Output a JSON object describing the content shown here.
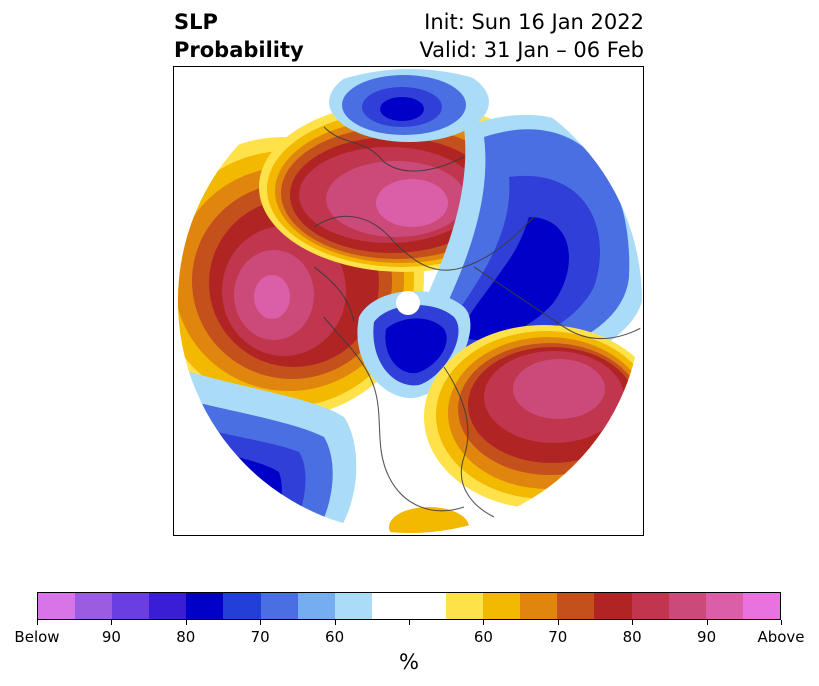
{
  "title": {
    "left_line1": "SLP",
    "left_line2": "Probability",
    "right_line1": "Init: Sun 16 Jan 2022",
    "right_line2": "Valid: 31 Jan – 06 Feb"
  },
  "map": {
    "projection": "north polar stereographic",
    "field": "SLP probability",
    "colors": {
      "below_strong": "#2f3fd8",
      "below_deep": "#0000c8",
      "below_mid": "#4a6fe3",
      "below_light": "#74aef0",
      "below_pale": "#aadcf8",
      "neutral": "#ffffff",
      "above_pale": "#ffe24a",
      "above_light": "#f3b800",
      "above_mid": "#e0860f",
      "above_orange": "#c4501c",
      "above_red": "#b12424",
      "above_crimson": "#c0364e",
      "above_rose": "#cc4a7a",
      "above_pink": "#da5fa8"
    }
  },
  "colorbar": {
    "colors": [
      "#d775e8",
      "#9a5ce0",
      "#6a3ee0",
      "#3a1ed6",
      "#0000c8",
      "#2240d8",
      "#4a6fe3",
      "#74aef0",
      "#aadcf8",
      "#ffffff",
      "#ffffff",
      "#ffe24a",
      "#f3b800",
      "#e0860f",
      "#c4501c",
      "#b12424",
      "#c0364e",
      "#cc4a7a",
      "#da5fa8",
      "#e872e0"
    ],
    "tick_labels": [
      "Below",
      "90",
      "80",
      "70",
      "60",
      "",
      "60",
      "70",
      "80",
      "90",
      "Above"
    ],
    "unit": "%"
  }
}
